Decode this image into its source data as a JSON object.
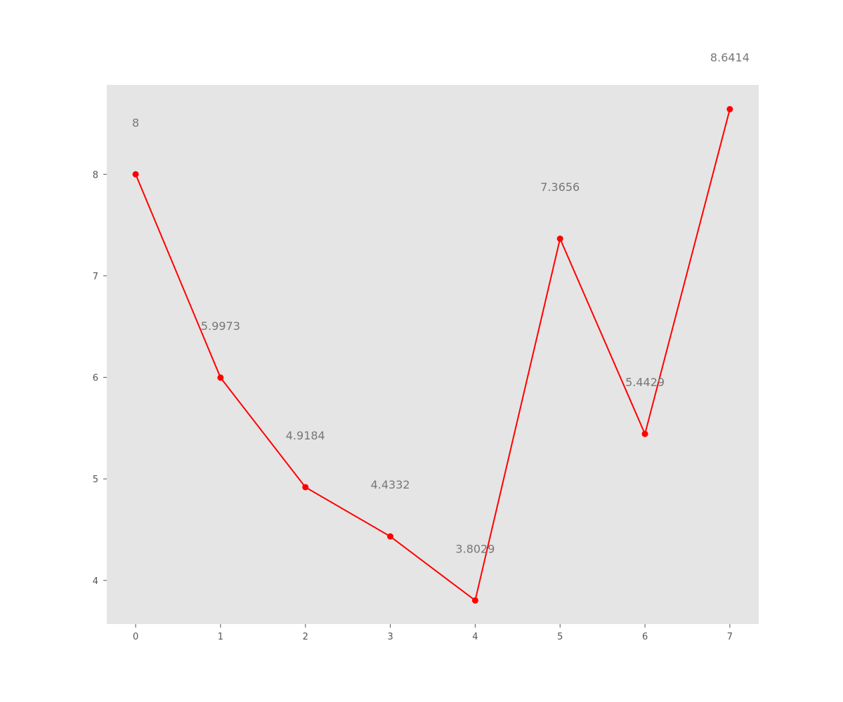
{
  "chart_data": {
    "type": "line",
    "title": "",
    "xlabel": "",
    "ylabel": "",
    "x": [
      0,
      1,
      2,
      3,
      4,
      5,
      6,
      7
    ],
    "series": [
      {
        "values": [
          8,
          5.9973,
          4.9184,
          4.4332,
          3.8029,
          7.3656,
          5.4429,
          8.6414
        ],
        "labels": [
          "8",
          "5.9973",
          "4.9184",
          "4.4332",
          "3.8029",
          "7.3656",
          "5.4429",
          "8.6414"
        ],
        "color": "#ff0000",
        "marker": "circle"
      }
    ],
    "x_ticks": [
      "0",
      "1",
      "2",
      "3",
      "4",
      "5",
      "6",
      "7"
    ],
    "y_ticks": [
      "4",
      "5",
      "6",
      "7",
      "8"
    ],
    "xlim": [
      -0.34,
      7.34
    ],
    "ylim": [
      3.57,
      8.88
    ],
    "grid": false,
    "background_color": "#e5e5e5",
    "label_color": "#777777",
    "tick_color": "#555555"
  }
}
